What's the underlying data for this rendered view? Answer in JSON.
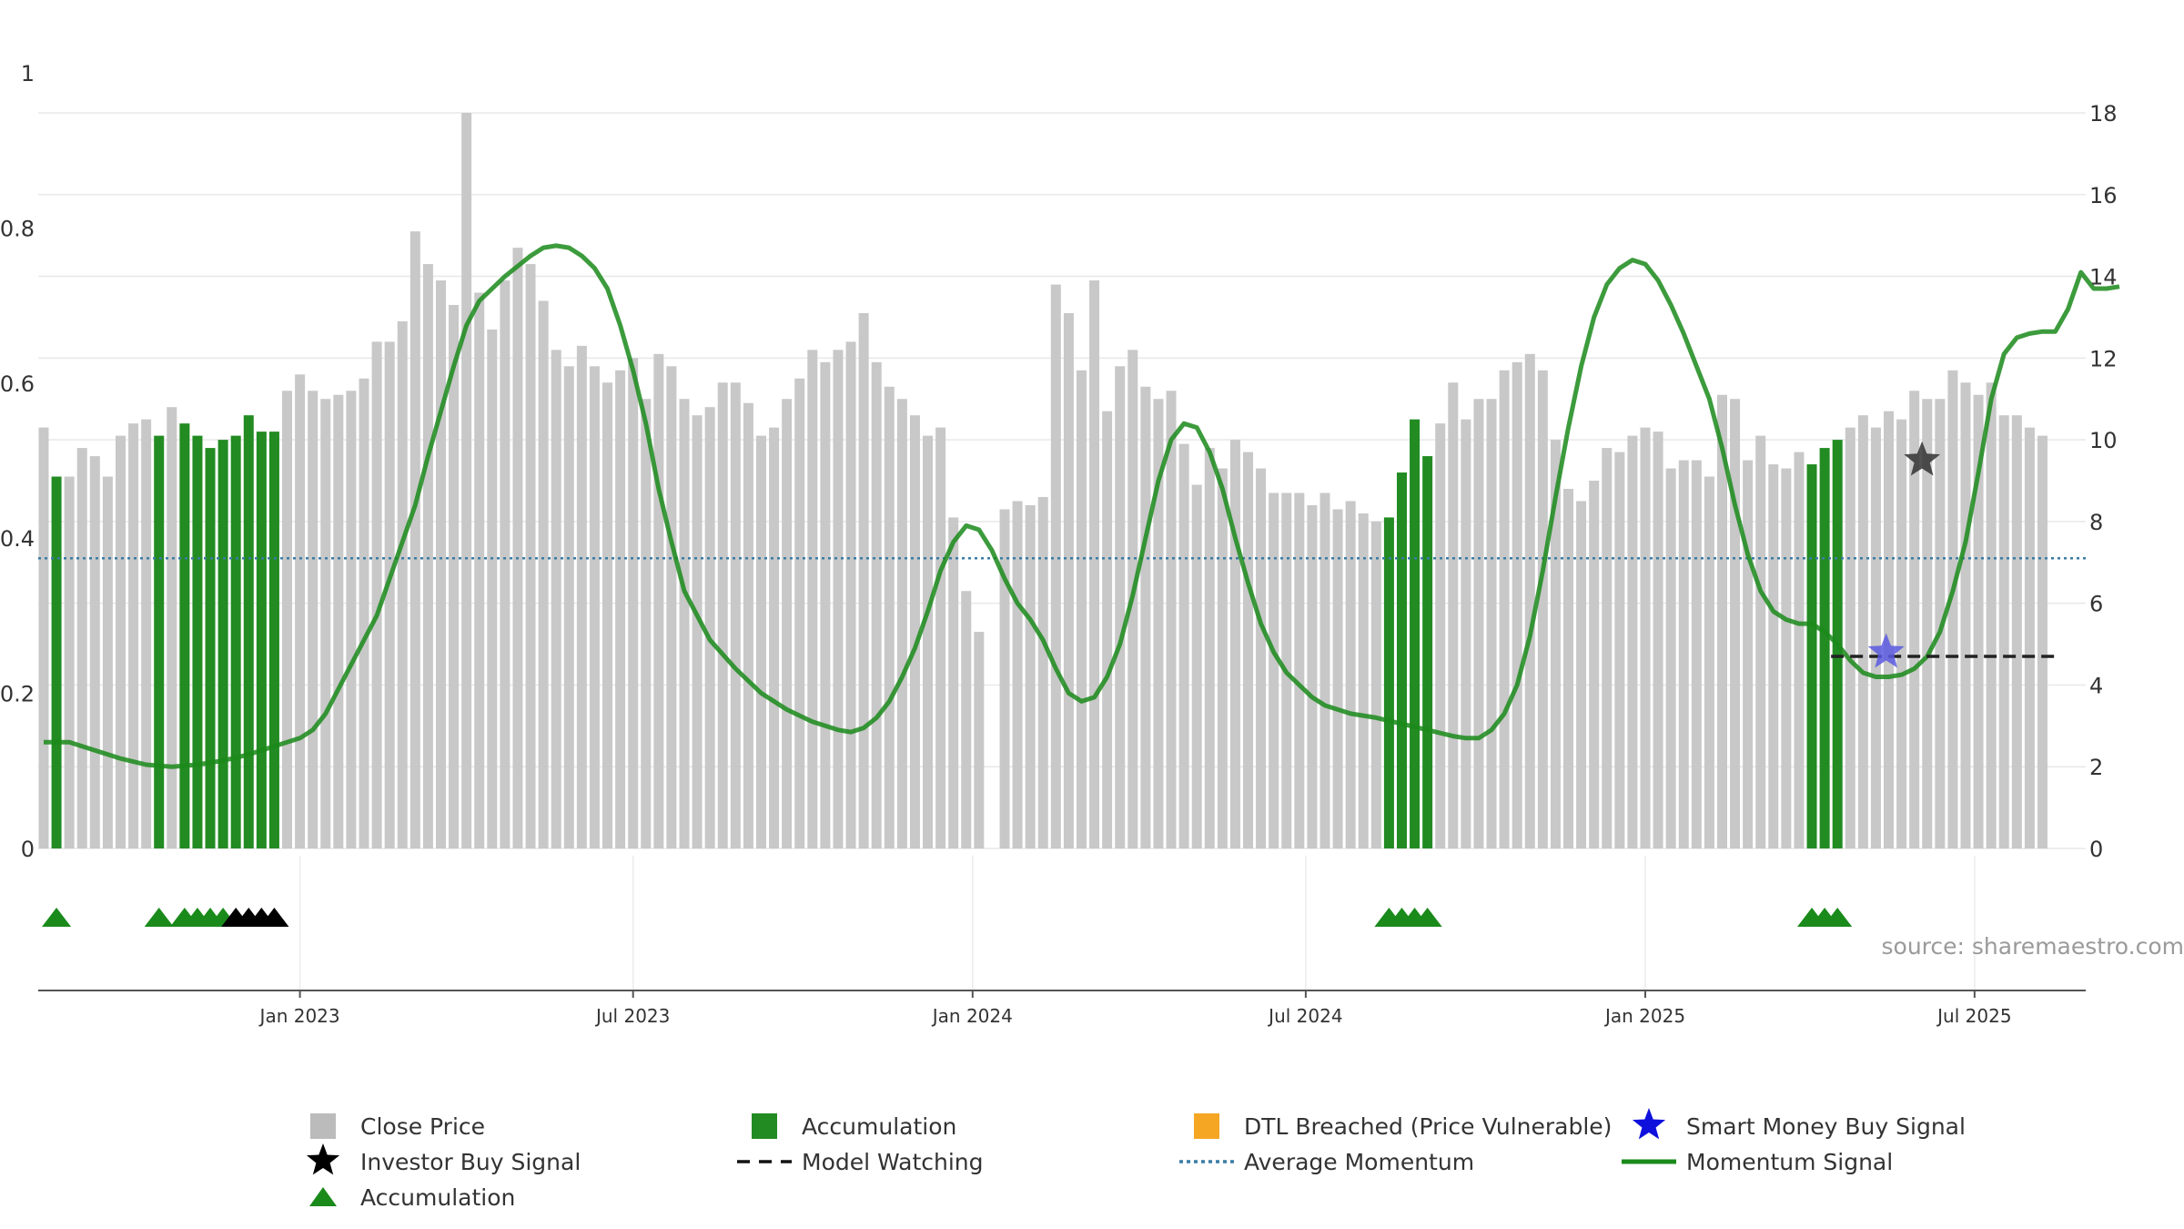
{
  "chart_data": {
    "type": "bar",
    "title": "",
    "source": "source: sharemaestro.com",
    "left_axis": {
      "ticks": [
        0,
        0.2,
        0.4,
        0.6,
        0.8,
        1
      ],
      "ylim": [
        0,
        1
      ]
    },
    "right_axis": {
      "ticks": [
        0,
        2,
        4,
        6,
        8,
        10,
        12,
        14,
        16,
        18
      ],
      "ylim": [
        0,
        18
      ]
    },
    "x_axis": {
      "tick_labels": [
        "Jan 2023",
        "Jul 2023",
        "Jan 2024",
        "Jul 2024",
        "Jan 2025",
        "Jul 2025"
      ],
      "tick_weeks": [
        20,
        46,
        72.5,
        98.5,
        125,
        150.7
      ],
      "week_range": [
        0,
        157
      ]
    },
    "grid": true,
    "average_momentum": 7.1,
    "close_price": [
      10.3,
      9.1,
      9.1,
      9.8,
      9.6,
      9.1,
      10.1,
      10.4,
      10.5,
      10.1,
      10.8,
      10.4,
      10.1,
      9.8,
      10.0,
      10.1,
      10.6,
      10.2,
      10.2,
      11.2,
      11.6,
      11.2,
      11.0,
      11.1,
      11.2,
      11.5,
      12.4,
      12.4,
      12.9,
      15.1,
      14.3,
      13.9,
      13.3,
      18.0,
      13.6,
      12.7,
      13.9,
      14.7,
      14.3,
      13.4,
      12.2,
      11.8,
      12.3,
      11.8,
      11.4,
      11.7,
      12.0,
      11.0,
      12.1,
      11.8,
      11.0,
      10.6,
      10.8,
      11.4,
      11.4,
      10.9,
      10.1,
      10.3,
      11.0,
      11.5,
      12.2,
      11.9,
      12.2,
      12.4,
      13.1,
      11.9,
      11.3,
      11.0,
      10.6,
      10.1,
      10.3,
      8.1,
      6.3,
      5.3,
      0,
      8.3,
      8.5,
      8.4,
      8.6,
      13.8,
      13.1,
      11.7,
      13.9,
      10.7,
      11.8,
      12.2,
      11.3,
      11.0,
      11.2,
      9.9,
      8.9,
      9.8,
      9.3,
      10.0,
      9.7,
      9.3,
      8.7,
      8.7,
      8.7,
      8.4,
      8.7,
      8.3,
      8.5,
      8.2,
      8.0,
      8.1,
      9.2,
      10.5,
      9.6,
      10.4,
      11.4,
      10.5,
      11.0,
      11.0,
      11.7,
      11.9,
      12.1,
      11.7,
      10.0,
      8.8,
      8.5,
      9.0,
      9.8,
      9.7,
      10.1,
      10.3,
      10.2,
      9.3,
      9.5,
      9.5,
      9.1,
      11.1,
      11.0,
      9.5,
      10.1,
      9.4,
      9.3,
      9.7,
      9.4,
      9.8,
      10.0,
      10.3,
      10.6,
      10.3,
      10.7,
      10.5,
      11.2,
      11.0,
      11.0,
      11.7,
      11.4,
      11.1,
      11.4,
      10.6,
      10.6,
      10.3,
      10.1
    ],
    "accumulation_weeks": [
      1,
      9,
      11,
      12,
      13,
      14,
      15,
      16,
      17,
      18,
      105,
      106,
      107,
      108,
      138,
      139,
      140
    ],
    "accumulation_markers": [
      1,
      9,
      11,
      12,
      13,
      14
    ],
    "investor_markers": [
      15,
      16,
      17,
      18
    ],
    "accumulation_markers_late": [
      105,
      106,
      107,
      108,
      138,
      139,
      140
    ],
    "momentum": [
      [
        0,
        2.6
      ],
      [
        2,
        2.6
      ],
      [
        4,
        2.4
      ],
      [
        6,
        2.2
      ],
      [
        8,
        2.05
      ],
      [
        10,
        2.0
      ],
      [
        12,
        2.05
      ],
      [
        14,
        2.15
      ],
      [
        16,
        2.3
      ],
      [
        18,
        2.5
      ],
      [
        20,
        2.7
      ],
      [
        21,
        2.9
      ],
      [
        22,
        3.3
      ],
      [
        24,
        4.5
      ],
      [
        26,
        5.7
      ],
      [
        28,
        7.5
      ],
      [
        29,
        8.4
      ],
      [
        30,
        9.6
      ],
      [
        32,
        11.8
      ],
      [
        33,
        12.8
      ],
      [
        34,
        13.4
      ],
      [
        36,
        14.0
      ],
      [
        38,
        14.5
      ],
      [
        39,
        14.7
      ],
      [
        40,
        14.75
      ],
      [
        41,
        14.7
      ],
      [
        42,
        14.5
      ],
      [
        43,
        14.2
      ],
      [
        44,
        13.7
      ],
      [
        45,
        12.8
      ],
      [
        46,
        11.7
      ],
      [
        47,
        10.4
      ],
      [
        48,
        8.8
      ],
      [
        49,
        7.5
      ],
      [
        50,
        6.3
      ],
      [
        52,
        5.1
      ],
      [
        54,
        4.4
      ],
      [
        56,
        3.8
      ],
      [
        58,
        3.4
      ],
      [
        60,
        3.1
      ],
      [
        62,
        2.9
      ],
      [
        63,
        2.85
      ],
      [
        64,
        2.95
      ],
      [
        65,
        3.2
      ],
      [
        66,
        3.6
      ],
      [
        67,
        4.2
      ],
      [
        68,
        4.9
      ],
      [
        69,
        5.8
      ],
      [
        70,
        6.8
      ],
      [
        71,
        7.5
      ],
      [
        72,
        7.9
      ],
      [
        73,
        7.8
      ],
      [
        74,
        7.3
      ],
      [
        75,
        6.6
      ],
      [
        76,
        6.0
      ],
      [
        77,
        5.6
      ],
      [
        78,
        5.1
      ],
      [
        79,
        4.4
      ],
      [
        80,
        3.8
      ],
      [
        81,
        3.6
      ],
      [
        82,
        3.7
      ],
      [
        83,
        4.2
      ],
      [
        84,
        5.0
      ],
      [
        85,
        6.2
      ],
      [
        86,
        7.6
      ],
      [
        87,
        9.0
      ],
      [
        88,
        10.0
      ],
      [
        89,
        10.4
      ],
      [
        90,
        10.3
      ],
      [
        91,
        9.7
      ],
      [
        92,
        8.8
      ],
      [
        93,
        7.6
      ],
      [
        94,
        6.5
      ],
      [
        95,
        5.5
      ],
      [
        96,
        4.8
      ],
      [
        97,
        4.3
      ],
      [
        98,
        4.0
      ],
      [
        99,
        3.7
      ],
      [
        100,
        3.5
      ],
      [
        102,
        3.3
      ],
      [
        104,
        3.2
      ],
      [
        106,
        3.05
      ],
      [
        108,
        2.9
      ],
      [
        110,
        2.75
      ],
      [
        111,
        2.7
      ],
      [
        112,
        2.7
      ],
      [
        113,
        2.9
      ],
      [
        114,
        3.3
      ],
      [
        115,
        4.0
      ],
      [
        116,
        5.2
      ],
      [
        117,
        6.8
      ],
      [
        118,
        8.6
      ],
      [
        119,
        10.3
      ],
      [
        120,
        11.8
      ],
      [
        121,
        13.0
      ],
      [
        122,
        13.8
      ],
      [
        123,
        14.2
      ],
      [
        124,
        14.4
      ],
      [
        125,
        14.3
      ],
      [
        126,
        13.9
      ],
      [
        127,
        13.3
      ],
      [
        128,
        12.6
      ],
      [
        129,
        11.8
      ],
      [
        130,
        11.0
      ],
      [
        131,
        9.8
      ],
      [
        132,
        8.4
      ],
      [
        133,
        7.2
      ],
      [
        134,
        6.3
      ],
      [
        135,
        5.8
      ],
      [
        136,
        5.6
      ],
      [
        137,
        5.5
      ],
      [
        138,
        5.5
      ],
      [
        139,
        5.3
      ],
      [
        140,
        5.0
      ],
      [
        141,
        4.6
      ],
      [
        142,
        4.3
      ],
      [
        143,
        4.2
      ],
      [
        144,
        4.2
      ],
      [
        145,
        4.25
      ],
      [
        146,
        4.4
      ],
      [
        147,
        4.7
      ],
      [
        148,
        5.3
      ],
      [
        149,
        6.3
      ],
      [
        150,
        7.5
      ],
      [
        151,
        9.2
      ],
      [
        152,
        11.0
      ],
      [
        153,
        12.1
      ],
      [
        154,
        12.5
      ],
      [
        155,
        12.6
      ],
      [
        156,
        12.65
      ],
      [
        157,
        12.65
      ],
      [
        158,
        13.2
      ],
      [
        159,
        14.1
      ],
      [
        160,
        13.7
      ],
      [
        161,
        13.7
      ],
      [
        162,
        13.75
      ]
    ],
    "model_watching": {
      "x_start": 139.5,
      "x_end": 157,
      "value": 4.7
    },
    "smart_money_buy": {
      "week": 143.8,
      "value": 4.8
    },
    "investor_buy": {
      "week": 146.6,
      "value": 9.5
    },
    "legend": [
      {
        "label": "Close Price",
        "symbol": "gray-square",
        "color": "#bbbbbb"
      },
      {
        "label": "Accumulation",
        "symbol": "green-square",
        "color": "#228b22"
      },
      {
        "label": "DTL Breached (Price Vulnerable)",
        "symbol": "orange-square",
        "color": "#f5a623"
      },
      {
        "label": "Smart Money Buy Signal",
        "symbol": "blue-star-icon",
        "color": "#1010dd"
      },
      {
        "label": "Investor Buy Signal",
        "symbol": "black-star-icon",
        "color": "#000000"
      },
      {
        "label": "Model Watching",
        "symbol": "dashed-line",
        "color": "#111111"
      },
      {
        "label": "Average Momentum",
        "symbol": "dotted-line",
        "color": "#3a7ca5"
      },
      {
        "label": "Momentum Signal",
        "symbol": "solid-line",
        "color": "#1a8a1a"
      },
      {
        "label": "Accumulation",
        "symbol": "green-triangle-icon",
        "color": "#1a8a1a"
      }
    ]
  }
}
